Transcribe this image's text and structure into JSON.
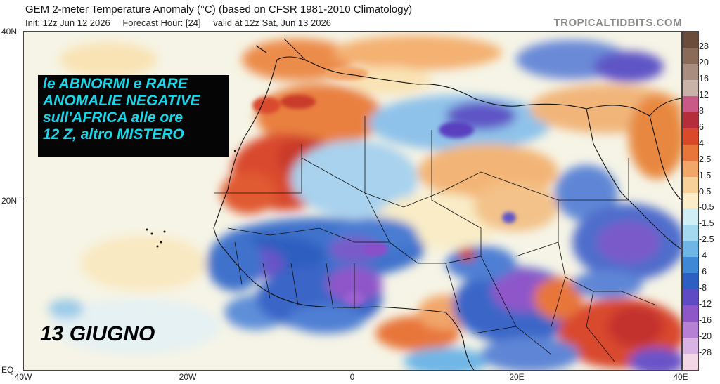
{
  "header": {
    "title": "GEM 2-meter Temperature Anomaly (°C) (based on CFSR 1981-2010 Climatology)",
    "init": "Init: 12z Jun 12 2026",
    "forecast_hour": "Forecast Hour: [24]",
    "valid": "valid at 12z Sat, Jun 13 2026"
  },
  "brand": "TROPICALTIDBITS.COM",
  "annotation": {
    "lines": [
      "le ABNORMI e RARE",
      "ANOMALIE NEGATIVE",
      "sull'AFRICA alle ore",
      "12 Z, altro MISTERO"
    ],
    "text_color": "#19d6e8",
    "background": "#050505"
  },
  "date_label": "13 GIUGNO",
  "axes": {
    "lat_labels": [
      "40N",
      "20N",
      "EQ"
    ],
    "lon_labels": [
      "40W",
      "20W",
      "0",
      "20E",
      "40E"
    ]
  },
  "colorbar": {
    "labels": [
      "28",
      "20",
      "16",
      "12",
      "8",
      "6",
      "4",
      "2.5",
      "1.5",
      "0.5",
      "-0.5",
      "-1.5",
      "-2.5",
      "-4",
      "-6",
      "-8",
      "-12",
      "-16",
      "-20",
      "-28"
    ],
    "colors": [
      "#6b4b3a",
      "#8a6a58",
      "#a98e80",
      "#c9b2a8",
      "#c95a88",
      "#b52d3a",
      "#d84a2a",
      "#e8763a",
      "#f2a66a",
      "#f7cf98",
      "#fbeec8",
      "#cfeef6",
      "#a5d9ef",
      "#6fb6e6",
      "#3f88d6",
      "#2d5fc2",
      "#5f4cc4",
      "#8f56c9",
      "#b681d4",
      "#d9b3e4",
      "#f3d7e6"
    ]
  },
  "field_colors": {
    "ocean": "#f6f4e6",
    "neutral": "#f9ecc7",
    "warm": "#f0a15d",
    "hot": "#d9482f",
    "cool": "#78b8e8",
    "cold": "#3a6fcc",
    "very_cold": "#6a52c8",
    "extreme_cold": "#9a5fd0"
  }
}
